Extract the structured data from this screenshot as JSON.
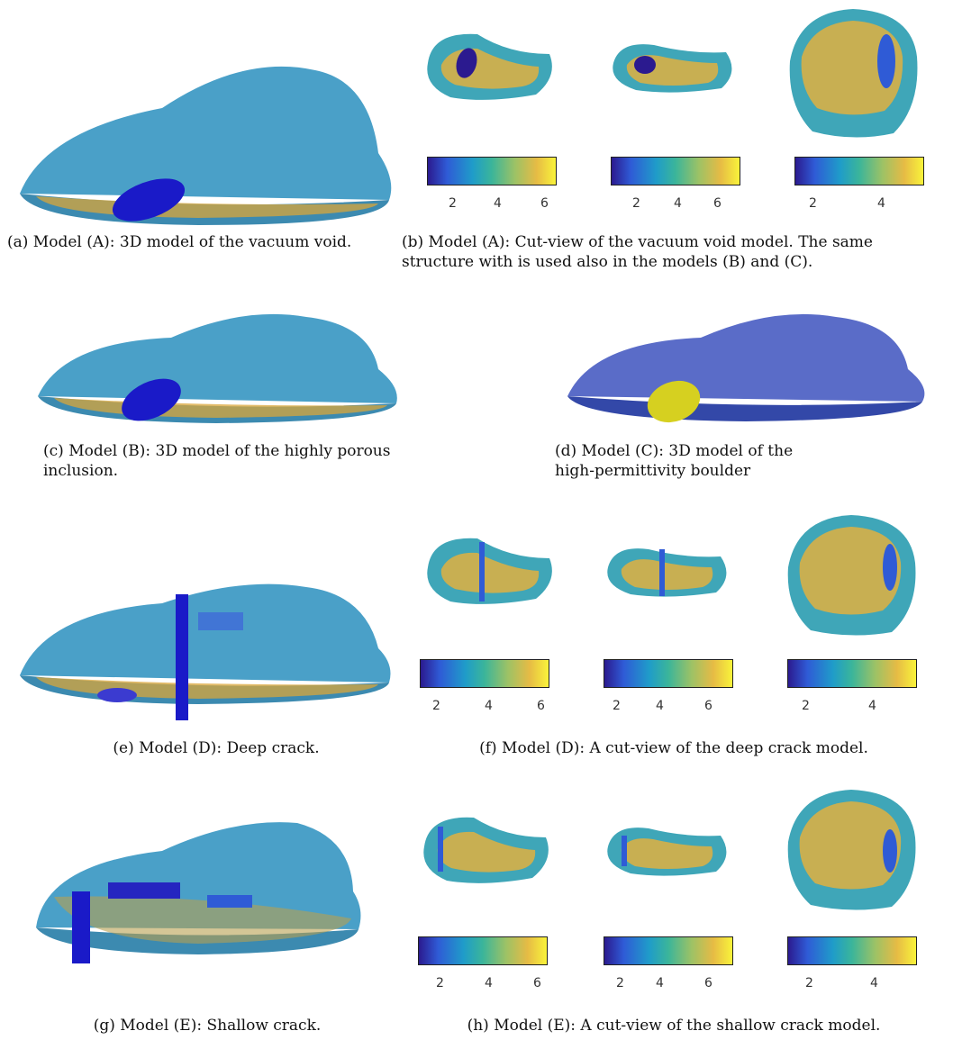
{
  "captions": {
    "a": "(a) Model (A): 3D model of the vacuum void.",
    "b": "(b) Model (A): Cut-view of the vacuum void model. The same structure with is used also in the models (B) and (C).",
    "c": "(c) Model (B): 3D model of the highly porous inclusion.",
    "d": "(d) Model (C): 3D model of the high-permittivity boulder",
    "e": "(e) Model (D): Deep crack.",
    "f": "(f) Model (D): A cut-view of the deep crack model.",
    "g": "(g) Model (E): Shallow crack.",
    "h": "(h) Model (E): A cut-view of the shallow crack model."
  },
  "colorbar_ticks": {
    "panel_cols_1_2": [
      "2",
      "4",
      "6"
    ],
    "panel_col_3": [
      "2",
      "4"
    ]
  },
  "colors": {
    "body_blue": "#4aa0c8",
    "inclusion_blue": "#1a1ac8",
    "boulder_yellow": "#d6d020",
    "high_value": "#f0b430",
    "low_value": "#2b1a8f"
  }
}
